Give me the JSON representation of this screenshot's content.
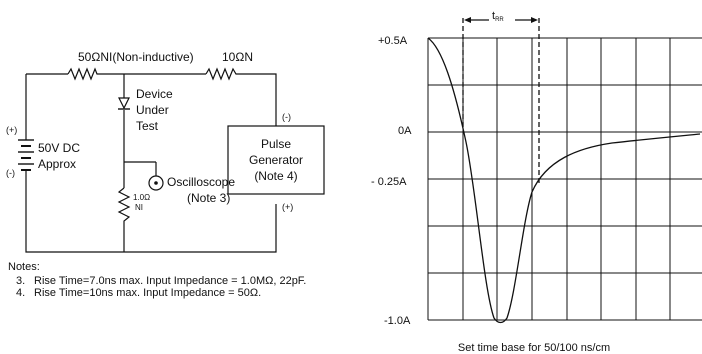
{
  "circuit": {
    "resistor_top_left": "50ΩNI(Non-inductive)",
    "resistor_top_right": "10ΩN",
    "dut_lines": [
      "Device",
      "Under",
      "Test"
    ],
    "source_plus": "(+)",
    "source_minus": "(-)",
    "source_lines": [
      "50V DC",
      "Approx"
    ],
    "shunt_value": "1.0Ω",
    "shunt_type": "NI",
    "scope_lines": [
      "Oscilloscope",
      "(Note 3)"
    ],
    "pulse_lines": [
      "Pulse",
      "Generator",
      "(Note 4)"
    ],
    "pulse_minus": "(-)",
    "pulse_plus": "(+)"
  },
  "notes": {
    "heading": "Notes:",
    "items": [
      {
        "num": "3.",
        "text": "Rise Time=7.0ns max. Input  Impedance = 1.0MΩ, 22pF."
      },
      {
        "num": "4.",
        "text": "Rise Time=10ns max. Input  Impedance = 50Ω."
      }
    ]
  },
  "waveform": {
    "y_labels": [
      "+0.5A",
      "0A",
      "- 0.25A",
      "-1.0A"
    ],
    "trr_label": "t",
    "trr_sub": "RR",
    "time_base_caption": "Set time base for 50/100 ns/cm"
  }
}
